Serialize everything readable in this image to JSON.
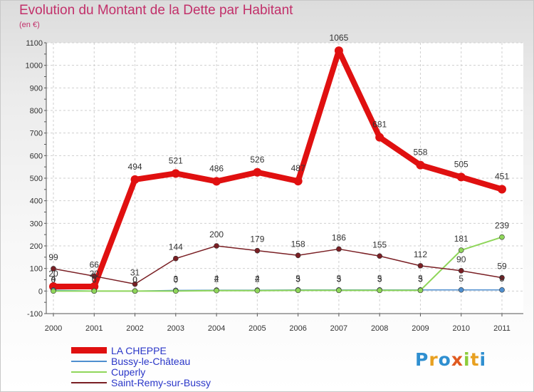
{
  "chart_data": {
    "type": "line",
    "title": "Evolution du Montant de la Dette par Habitant",
    "subtitle": "(en €)",
    "categories": [
      "2000",
      "2001",
      "2002",
      "2003",
      "2004",
      "2005",
      "2006",
      "2007",
      "2008",
      "2009",
      "2010",
      "2011"
    ],
    "ylim": [
      -100,
      1100
    ],
    "yticks": [
      -100,
      0,
      100,
      200,
      300,
      400,
      500,
      600,
      700,
      800,
      900,
      1000,
      1100
    ],
    "grid": true,
    "legend_placement": "bottom-left",
    "series": [
      {
        "name": "LA CHEPPE",
        "color": "#e01010",
        "values": [
          20,
          20,
          494,
          521,
          486,
          526,
          487,
          1065,
          681,
          558,
          505,
          451
        ]
      },
      {
        "name": "Bussy-le-Château",
        "color": "#4f8fcf",
        "values": [
          4,
          0,
          0,
          3,
          4,
          4,
          5,
          5,
          5,
          5,
          5,
          5
        ]
      },
      {
        "name": "Cuperly",
        "color": "#8fd65a",
        "values": [
          0,
          0,
          0,
          0,
          2,
          2,
          3,
          3,
          3,
          3,
          181,
          239
        ]
      },
      {
        "name": "Saint-Remy-sur-Bussy",
        "color": "#7a1f24",
        "values": [
          99,
          66,
          31,
          144,
          200,
          179,
          158,
          186,
          155,
          112,
          90,
          59
        ]
      }
    ]
  },
  "logo": {
    "text": "Proxiti"
  }
}
